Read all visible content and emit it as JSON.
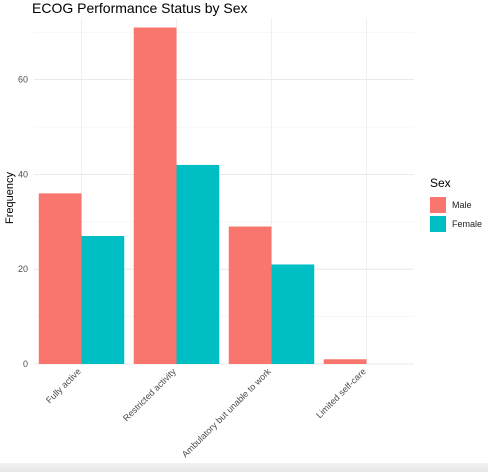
{
  "chart_data": {
    "type": "bar",
    "title": "ECOG Performance Status by Sex",
    "ylabel": "Frequency",
    "xlabel": "",
    "categories": [
      "Fully active",
      "Restricted activity",
      "Ambulatory but unable to work",
      "Limited self-care"
    ],
    "series": [
      {
        "name": "Male",
        "values": [
          36,
          71,
          29,
          1
        ],
        "color": "#F8766D"
      },
      {
        "name": "Female",
        "values": [
          27,
          42,
          21,
          0
        ],
        "color": "#00BFC4"
      }
    ],
    "ylim": [
      0,
      73
    ],
    "yticks": [
      0,
      20,
      40,
      60
    ],
    "grid": true,
    "legend": {
      "title": "Sex",
      "position": "right"
    }
  }
}
